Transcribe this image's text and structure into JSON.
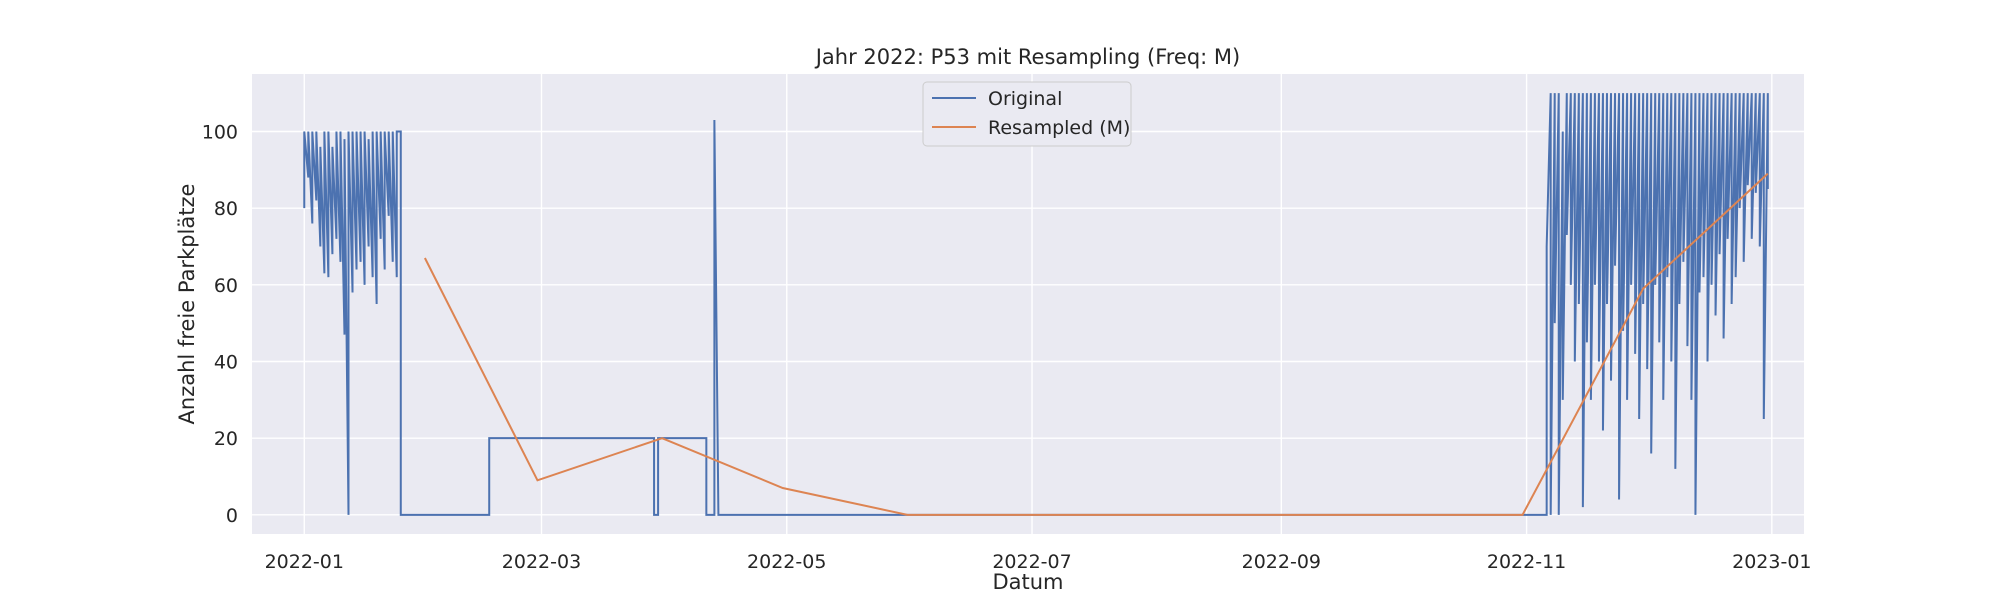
{
  "chart_data": {
    "type": "line",
    "title": "Jahr 2022: P53 mit Resampling (Freq: M)",
    "xlabel": "Datum",
    "ylabel": "Anzahl freie Parkplätze",
    "xlim": [
      "2021-12-19",
      "2023-01-09"
    ],
    "ylim": [
      -5,
      115
    ],
    "x_ticks": [
      "2022-01-01",
      "2022-03-01",
      "2022-05-01",
      "2022-07-01",
      "2022-09-01",
      "2022-11-01",
      "2023-01-01"
    ],
    "x_tick_labels": [
      "2022-01",
      "2022-03",
      "2022-05",
      "2022-07",
      "2022-09",
      "2022-11",
      "2023-01"
    ],
    "y_ticks": [
      0,
      20,
      40,
      60,
      80,
      100
    ],
    "y_tick_labels": [
      "0",
      "20",
      "40",
      "60",
      "80",
      "100"
    ],
    "grid": true,
    "legend_position": "top-center",
    "background_color": "#eaeaf2",
    "grid_color": "#ffffff",
    "series": [
      {
        "name": "Original",
        "color": "#4c72b0",
        "points": [
          [
            "2022-01-01",
            80
          ],
          [
            "2022-01-01",
            100
          ],
          [
            "2022-01-02",
            88
          ],
          [
            "2022-01-02",
            100
          ],
          [
            "2022-01-03",
            76
          ],
          [
            "2022-01-03",
            100
          ],
          [
            "2022-01-04",
            82
          ],
          [
            "2022-01-04",
            100
          ],
          [
            "2022-01-05",
            70
          ],
          [
            "2022-01-05",
            96
          ],
          [
            "2022-01-06",
            63
          ],
          [
            "2022-01-06",
            100
          ],
          [
            "2022-01-07",
            62
          ],
          [
            "2022-01-07",
            100
          ],
          [
            "2022-01-08",
            68
          ],
          [
            "2022-01-08",
            96
          ],
          [
            "2022-01-09",
            72
          ],
          [
            "2022-01-09",
            100
          ],
          [
            "2022-01-10",
            66
          ],
          [
            "2022-01-10",
            100
          ],
          [
            "2022-01-11",
            47
          ],
          [
            "2022-01-11",
            98
          ],
          [
            "2022-01-12",
            0
          ],
          [
            "2022-01-12",
            100
          ],
          [
            "2022-01-13",
            58
          ],
          [
            "2022-01-13",
            100
          ],
          [
            "2022-01-14",
            64
          ],
          [
            "2022-01-14",
            100
          ],
          [
            "2022-01-15",
            66
          ],
          [
            "2022-01-15",
            100
          ],
          [
            "2022-01-16",
            60
          ],
          [
            "2022-01-16",
            100
          ],
          [
            "2022-01-17",
            70
          ],
          [
            "2022-01-17",
            98
          ],
          [
            "2022-01-18",
            62
          ],
          [
            "2022-01-18",
            100
          ],
          [
            "2022-01-19",
            55
          ],
          [
            "2022-01-19",
            100
          ],
          [
            "2022-01-20",
            72
          ],
          [
            "2022-01-20",
            100
          ],
          [
            "2022-01-21",
            64
          ],
          [
            "2022-01-21",
            100
          ],
          [
            "2022-01-22",
            78
          ],
          [
            "2022-01-22",
            100
          ],
          [
            "2022-01-23",
            66
          ],
          [
            "2022-01-23",
            100
          ],
          [
            "2022-01-24",
            62
          ],
          [
            "2022-01-24",
            100
          ],
          [
            "2022-01-25",
            100
          ],
          [
            "2022-01-25",
            0
          ],
          [
            "2022-02-16",
            0
          ],
          [
            "2022-02-16",
            20
          ],
          [
            "2022-03-29",
            20
          ],
          [
            "2022-03-29",
            0
          ],
          [
            "2022-03-30",
            0
          ],
          [
            "2022-03-30",
            20
          ],
          [
            "2022-04-11",
            20
          ],
          [
            "2022-04-11",
            0
          ],
          [
            "2022-04-13",
            0
          ],
          [
            "2022-04-13",
            103
          ],
          [
            "2022-04-14",
            0
          ],
          [
            "2022-11-06",
            0
          ],
          [
            "2022-11-06",
            70
          ],
          [
            "2022-11-07",
            110
          ],
          [
            "2022-11-07",
            0
          ],
          [
            "2022-11-08",
            110
          ],
          [
            "2022-11-08",
            50
          ],
          [
            "2022-11-09",
            110
          ],
          [
            "2022-11-09",
            0
          ],
          [
            "2022-11-10",
            100
          ],
          [
            "2022-11-10",
            30
          ],
          [
            "2022-11-11",
            110
          ],
          [
            "2022-11-11",
            73
          ],
          [
            "2022-11-12",
            110
          ],
          [
            "2022-11-12",
            60
          ],
          [
            "2022-11-13",
            110
          ],
          [
            "2022-11-13",
            40
          ],
          [
            "2022-11-14",
            110
          ],
          [
            "2022-11-14",
            55
          ],
          [
            "2022-11-15",
            110
          ],
          [
            "2022-11-15",
            2
          ],
          [
            "2022-11-16",
            110
          ],
          [
            "2022-11-16",
            45
          ],
          [
            "2022-11-17",
            110
          ],
          [
            "2022-11-17",
            30
          ],
          [
            "2022-11-18",
            110
          ],
          [
            "2022-11-18",
            60
          ],
          [
            "2022-11-19",
            110
          ],
          [
            "2022-11-19",
            40
          ],
          [
            "2022-11-20",
            110
          ],
          [
            "2022-11-20",
            22
          ],
          [
            "2022-11-21",
            110
          ],
          [
            "2022-11-21",
            55
          ],
          [
            "2022-11-22",
            110
          ],
          [
            "2022-11-22",
            35
          ],
          [
            "2022-11-23",
            110
          ],
          [
            "2022-11-23",
            65
          ],
          [
            "2022-11-24",
            110
          ],
          [
            "2022-11-24",
            4
          ],
          [
            "2022-11-25",
            110
          ],
          [
            "2022-11-25",
            48
          ],
          [
            "2022-11-26",
            110
          ],
          [
            "2022-11-26",
            30
          ],
          [
            "2022-11-27",
            110
          ],
          [
            "2022-11-27",
            60
          ],
          [
            "2022-11-28",
            110
          ],
          [
            "2022-11-28",
            42
          ],
          [
            "2022-11-29",
            110
          ],
          [
            "2022-11-29",
            25
          ],
          [
            "2022-11-30",
            110
          ],
          [
            "2022-11-30",
            55
          ],
          [
            "2022-12-01",
            110
          ],
          [
            "2022-12-01",
            38
          ],
          [
            "2022-12-02",
            110
          ],
          [
            "2022-12-02",
            16
          ],
          [
            "2022-12-03",
            110
          ],
          [
            "2022-12-03",
            60
          ],
          [
            "2022-12-04",
            110
          ],
          [
            "2022-12-04",
            45
          ],
          [
            "2022-12-05",
            110
          ],
          [
            "2022-12-05",
            30
          ],
          [
            "2022-12-06",
            110
          ],
          [
            "2022-12-06",
            62
          ],
          [
            "2022-12-07",
            110
          ],
          [
            "2022-12-07",
            40
          ],
          [
            "2022-12-08",
            110
          ],
          [
            "2022-12-08",
            12
          ],
          [
            "2022-12-09",
            110
          ],
          [
            "2022-12-09",
            55
          ],
          [
            "2022-12-10",
            110
          ],
          [
            "2022-12-10",
            66
          ],
          [
            "2022-12-11",
            110
          ],
          [
            "2022-12-11",
            44
          ],
          [
            "2022-12-12",
            110
          ],
          [
            "2022-12-12",
            30
          ],
          [
            "2022-12-13",
            110
          ],
          [
            "2022-12-13",
            0
          ],
          [
            "2022-12-14",
            110
          ],
          [
            "2022-12-14",
            58
          ],
          [
            "2022-12-15",
            110
          ],
          [
            "2022-12-15",
            62
          ],
          [
            "2022-12-16",
            110
          ],
          [
            "2022-12-16",
            40
          ],
          [
            "2022-12-17",
            110
          ],
          [
            "2022-12-17",
            60
          ],
          [
            "2022-12-18",
            110
          ],
          [
            "2022-12-18",
            52
          ],
          [
            "2022-12-19",
            110
          ],
          [
            "2022-12-19",
            68
          ],
          [
            "2022-12-20",
            110
          ],
          [
            "2022-12-20",
            46
          ],
          [
            "2022-12-21",
            110
          ],
          [
            "2022-12-21",
            72
          ],
          [
            "2022-12-22",
            110
          ],
          [
            "2022-12-22",
            55
          ],
          [
            "2022-12-23",
            110
          ],
          [
            "2022-12-23",
            62
          ],
          [
            "2022-12-24",
            110
          ],
          [
            "2022-12-24",
            80
          ],
          [
            "2022-12-25",
            110
          ],
          [
            "2022-12-25",
            66
          ],
          [
            "2022-12-26",
            110
          ],
          [
            "2022-12-26",
            86
          ],
          [
            "2022-12-27",
            110
          ],
          [
            "2022-12-27",
            72
          ],
          [
            "2022-12-28",
            110
          ],
          [
            "2022-12-28",
            84
          ],
          [
            "2022-12-29",
            110
          ],
          [
            "2022-12-29",
            70
          ],
          [
            "2022-12-30",
            110
          ],
          [
            "2022-12-30",
            25
          ],
          [
            "2022-12-31",
            110
          ],
          [
            "2022-12-31",
            85
          ]
        ]
      },
      {
        "name": "Resampled (M)",
        "color": "#dd8452",
        "points": [
          [
            "2022-01-31",
            67
          ],
          [
            "2022-02-28",
            9
          ],
          [
            "2022-03-31",
            20
          ],
          [
            "2022-04-30",
            7
          ],
          [
            "2022-05-31",
            0
          ],
          [
            "2022-06-30",
            0
          ],
          [
            "2022-07-31",
            0
          ],
          [
            "2022-08-31",
            0
          ],
          [
            "2022-09-30",
            0
          ],
          [
            "2022-10-31",
            0
          ],
          [
            "2022-11-30",
            59
          ],
          [
            "2022-12-31",
            89
          ]
        ]
      }
    ]
  }
}
